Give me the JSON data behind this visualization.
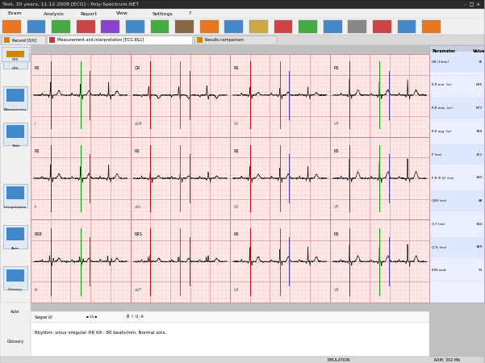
{
  "title_bar": "Test, 30 years, 11.12.2008 [ECG] - Poly-Spectrum.NET",
  "title_bar_bg": "#2b2b2b",
  "title_bar_fg": "#ffffff",
  "menu_items": [
    "Exam",
    "Analysis",
    "Report",
    "View",
    "Settings",
    "?"
  ],
  "tab_record": "Record [0/0]",
  "tab_meas": "Measurement and interpretation [ECG 8&1]",
  "tab_results": "Results comparison",
  "ecg_bg": "#ffe8e8",
  "ecg_grid_major": "#e89090",
  "ecg_grid_minor": "#f5c0c0",
  "ecg_line_color": "#1a1a1a",
  "ecg_marker_red": "#cc0000",
  "ecg_marker_green": "#00aa00",
  "ecg_marker_blue": "#4444bb",
  "main_bg": "#f0f0f0",
  "toolbar_bg": "#f0f0f0",
  "left_panel_bg": "#f0f0f0",
  "right_panel_bg": "#eef0ff",
  "right_panel_header": "#c8d0e0",
  "tab_active_bg": "#ffffff",
  "tab_inactive_bg": "#dcdcdc",
  "window_bg": "#c0c0c0",
  "lead_labels_row1": [
    "RS",
    "QR",
    "RS",
    "RS"
  ],
  "lead_labels_row2": [
    "RS",
    "RS",
    "RS",
    "RS"
  ],
  "lead_labels_row3": [
    "RSR",
    "RRS",
    "RS",
    "RS"
  ],
  "lead_names_row1": [
    "I",
    "aVR",
    "V1",
    "V4"
  ],
  "lead_names_row2": [
    "II",
    "aVL",
    "V2",
    "V5"
  ],
  "lead_names_row3": [
    "III",
    "aVF",
    "V3",
    "V6"
  ],
  "params_keys": [
    "HR (1/min)",
    "R-R min. (sc)",
    "R-R max. (sc)",
    "R-R avg. (sc)",
    "P (ms)",
    "P-R (P-Q) (ms)",
    "QRS (ms)",
    "Q-T (ms)",
    "Q-Tc (ms)",
    "ERS axid."
  ],
  "params_vals": [
    "76",
    "645",
    "877",
    "789",
    "103",
    "140",
    "88",
    "344",
    "389",
    "31"
  ],
  "bottom_text": "Rhythm: sinus irregular HR 69 - 80 beats/min. Normal axis.",
  "status_left": "EMULATION",
  "status_right": "RAM: 302 Mb"
}
